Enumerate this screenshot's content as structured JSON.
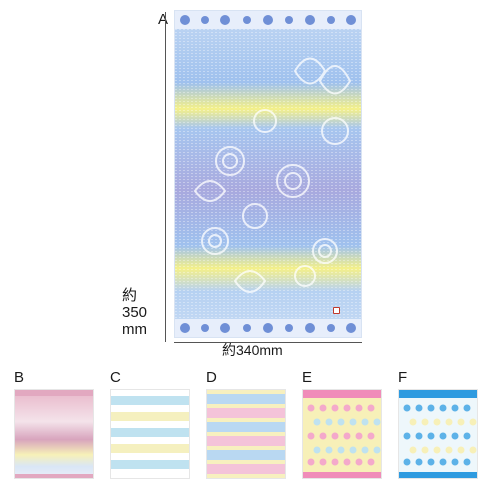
{
  "main_label": "A",
  "height_dimension": {
    "line1": "約",
    "line2": "350",
    "line3": "mm"
  },
  "width_dimension": "約340mm",
  "variants": [
    {
      "label": "B",
      "style": "gradient-pink",
      "colors": [
        "#e6b7c9",
        "#f6e6ec",
        "#f7f0b8",
        "#c8d9f1"
      ]
    },
    {
      "label": "C",
      "style": "stripes-pastel",
      "colors": [
        "#bfe2f0",
        "#ffffff",
        "#f5f0bf"
      ]
    },
    {
      "label": "D",
      "style": "stripes-pink-blue",
      "colors": [
        "#b9d8f2",
        "#f4c3d9",
        "#f7f0bf"
      ]
    },
    {
      "label": "E",
      "style": "polka-pink",
      "colors": [
        "#f08cb9",
        "#f7f0b8",
        "#bfe2f0"
      ]
    },
    {
      "label": "F",
      "style": "polka-blue",
      "colors": [
        "#2f9be0",
        "#bfe2f0",
        "#f7f0b8"
      ]
    }
  ],
  "main_colors": {
    "top": "#bcd5f2",
    "blue": "#9ec0ec",
    "yellow": "#f2f08a",
    "violet": "#a7a9de",
    "border": "#5b7fd0"
  }
}
